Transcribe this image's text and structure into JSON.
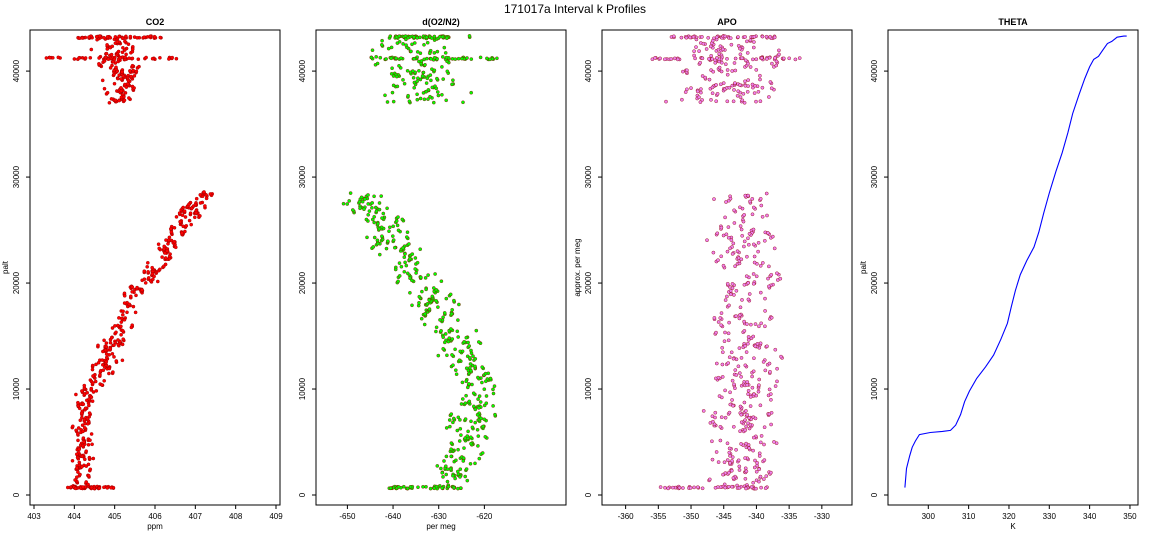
{
  "title": "171017a   Interval k Profiles",
  "colors": {
    "co2": "#ff0000",
    "o2n2": "#00ff00",
    "apo": "#ee82ee",
    "theta": "#0000ff",
    "outline": "#8b0000"
  },
  "chart_data": [
    {
      "type": "scatter",
      "title": "CO2",
      "xlabel": "ppm",
      "ylabel": "palt",
      "xlim": [
        403,
        409
      ],
      "ylim": [
        0,
        43500
      ],
      "xticks": [
        "403",
        "404",
        "405",
        "406",
        "407",
        "408",
        "409"
      ],
      "yticks": [
        "0",
        "10000",
        "20000",
        "30000",
        "40000"
      ],
      "series": [
        {
          "name": "CO2",
          "segments": [
            {
              "y0": 700,
              "y1": 10000,
              "x0": 404.1,
              "x1": 404.3,
              "spread": 0.55,
              "n": 110
            },
            {
              "y0": 10000,
              "y1": 20000,
              "x0": 404.5,
              "x1": 405.6,
              "spread": 0.6,
              "n": 110
            },
            {
              "y0": 20000,
              "y1": 28500,
              "x0": 405.8,
              "x1": 407.2,
              "spread": 0.7,
              "n": 110
            },
            {
              "y0": 37000,
              "y1": 40000,
              "x0": 405.0,
              "x1": 405.2,
              "spread": 0.9,
              "n": 60
            },
            {
              "y0": 40000,
              "y1": 43300,
              "x0": 405.0,
              "x1": 405.0,
              "spread": 1.3,
              "n": 60
            }
          ],
          "bands": [
            {
              "y": 700,
              "x0": 403.8,
              "x1": 405.0
            },
            {
              "y": 41200,
              "x0": 403.3,
              "x1": 406.6
            },
            {
              "y": 43200,
              "x0": 404.0,
              "x1": 406.2
            }
          ]
        }
      ]
    },
    {
      "type": "scatter",
      "title": "d(O2/N2)",
      "xlabel": "per meg",
      "ylabel": "",
      "xlim": [
        -656,
        -603
      ],
      "ylim": [
        0,
        43500
      ],
      "xticks": [
        "-650",
        "-640",
        "-630",
        "-620"
      ],
      "yticks": [
        "0",
        "10000",
        "20000",
        "30000",
        "40000"
      ],
      "series": [
        {
          "name": "d(O2/N2)",
          "segments": [
            {
              "y0": 700,
              "y1": 10000,
              "x0": -628,
              "x1": -620,
              "spread": 10,
              "n": 110
            },
            {
              "y0": 10000,
              "y1": 20000,
              "x0": -620,
              "x1": -634,
              "spread": 10,
              "n": 110
            },
            {
              "y0": 20000,
              "y1": 28500,
              "x0": -634,
              "x1": -647,
              "spread": 12,
              "n": 110
            },
            {
              "y0": 37000,
              "y1": 43300,
              "x0": -634,
              "x1": -634,
              "spread": 18,
              "n": 110
            }
          ],
          "bands": [
            {
              "y": 700,
              "x0": -641,
              "x1": -624
            },
            {
              "y": 41200,
              "x0": -645,
              "x1": -617
            },
            {
              "y": 43200,
              "x0": -641,
              "x1": -627
            }
          ]
        }
      ]
    },
    {
      "type": "scatter",
      "title": "APO",
      "xlabel": "",
      "ylabel": "approx. per meg",
      "xlim": [
        -363,
        -326
      ],
      "ylim": [
        0,
        43500
      ],
      "xticks": [
        "-360",
        "-355",
        "-350",
        "-345",
        "-340",
        "-335",
        "-330"
      ],
      "yticks": [
        "0",
        "10000",
        "20000",
        "30000",
        "40000"
      ],
      "series": [
        {
          "name": "APO",
          "segments": [
            {
              "y0": 700,
              "y1": 28500,
              "x0": -342,
              "x1": -342,
              "spread": 11,
              "n": 330
            },
            {
              "y0": 37000,
              "y1": 43300,
              "x0": -344,
              "x1": -344,
              "spread": 16,
              "n": 120
            }
          ],
          "bands": [
            {
              "y": 700,
              "x0": -355,
              "x1": -338
            },
            {
              "y": 41200,
              "x0": -356,
              "x1": -333
            },
            {
              "y": 43200,
              "x0": -353,
              "x1": -337
            }
          ]
        }
      ]
    },
    {
      "type": "line",
      "title": "THETA",
      "xlabel": "K",
      "ylabel": "palt",
      "xlim": [
        291,
        351
      ],
      "ylim": [
        0,
        43500
      ],
      "xticks": [
        "300",
        "310",
        "320",
        "330",
        "340",
        "350"
      ],
      "yticks": [
        "0",
        "10000",
        "20000",
        "30000",
        "40000"
      ],
      "series": [
        {
          "name": "THETA",
          "points": [
            [
              294.2,
              700
            ],
            [
              294.6,
              2500
            ],
            [
              295.4,
              3700
            ],
            [
              296.0,
              4500
            ],
            [
              296.8,
              5100
            ],
            [
              297.8,
              5700
            ],
            [
              300.5,
              5900
            ],
            [
              303.5,
              6000
            ],
            [
              305.5,
              6100
            ],
            [
              306.8,
              6600
            ],
            [
              308.0,
              7600
            ],
            [
              309.0,
              8800
            ],
            [
              310.2,
              9800
            ],
            [
              312.0,
              11000
            ],
            [
              314.2,
              12100
            ],
            [
              316.2,
              13200
            ],
            [
              318.0,
              14700
            ],
            [
              319.6,
              16200
            ],
            [
              320.6,
              17800
            ],
            [
              321.6,
              19300
            ],
            [
              322.8,
              20800
            ],
            [
              324.4,
              22100
            ],
            [
              326.2,
              23400
            ],
            [
              327.4,
              24800
            ],
            [
              328.6,
              26600
            ],
            [
              330.0,
              28500
            ],
            [
              331.6,
              30500
            ],
            [
              333.2,
              32300
            ],
            [
              334.6,
              34200
            ],
            [
              335.8,
              36000
            ],
            [
              337.4,
              37800
            ],
            [
              338.8,
              39300
            ],
            [
              340.0,
              40400
            ],
            [
              341.0,
              41100
            ],
            [
              342.2,
              41400
            ],
            [
              343.3,
              42000
            ],
            [
              344.4,
              42600
            ],
            [
              345.5,
              42800
            ],
            [
              346.8,
              43200
            ],
            [
              348.5,
              43300
            ],
            [
              349.2,
              43300
            ]
          ]
        }
      ]
    }
  ]
}
